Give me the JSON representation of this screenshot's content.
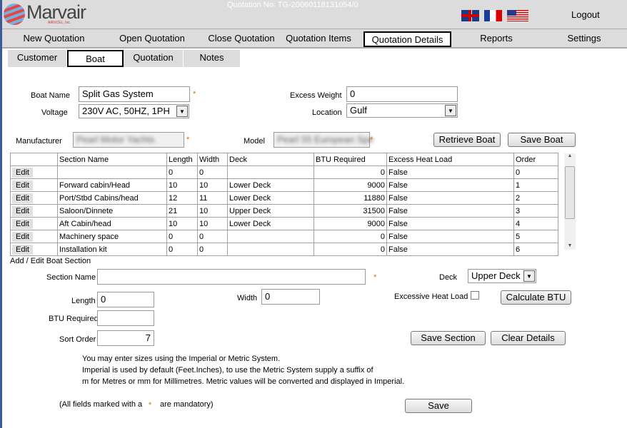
{
  "header": {
    "brand": "Marvair",
    "brand_sub": "AIRXCEL, Inc.",
    "quotation_no": "Quotation No: TG-20060118131054/0",
    "logout": "Logout",
    "flags": [
      "uk-flag",
      "france-flag",
      "us-flag"
    ]
  },
  "nav": [
    "New Quotation",
    "Open Quotation",
    "Close Quotation",
    "Quotation Items",
    "Quotation Details",
    "Reports",
    "Settings"
  ],
  "subtabs": [
    "Customer",
    "Boat",
    "Quotation",
    "Notes"
  ],
  "boat": {
    "name_label": "Boat Name",
    "name": "Split Gas System",
    "voltage_label": "Voltage",
    "voltage": "230V AC, 50HZ, 1PH",
    "excess_label": "Excess Weight",
    "excess": "0",
    "location_label": "Location",
    "location": "Gulf",
    "manufacturer_label": "Manufacturer",
    "manufacturer": "Pearl Motor Yachts",
    "model_label": "Model",
    "model": "Pearl 55 European Spe",
    "retrieve": "Retrieve Boat",
    "save": "Save Boat"
  },
  "table": {
    "headers": [
      "",
      "Section Name",
      "Length",
      "Width",
      "Deck",
      "BTU Required",
      "Excess Heat Load",
      "Order"
    ],
    "edit": "Edit",
    "rows": [
      [
        "",
        "0",
        "0",
        "",
        "0",
        "False",
        "0"
      ],
      [
        "Forward cabin/Head",
        "10",
        "10",
        "Lower Deck",
        "9000",
        "False",
        "1"
      ],
      [
        "Port/Stbd Cabins/head",
        "12",
        "11",
        "Lower Deck",
        "11880",
        "False",
        "2"
      ],
      [
        "Saloon/Dinnete",
        "21",
        "10",
        "Upper Deck",
        "31500",
        "False",
        "3"
      ],
      [
        "Aft Cabin/head",
        "10",
        "10",
        "Lower Deck",
        "9000",
        "False",
        "4"
      ],
      [
        "Machinery space",
        "0",
        "0",
        "",
        "0",
        "False",
        "5"
      ],
      [
        "Installation kit",
        "0",
        "0",
        "",
        "0",
        "False",
        "6"
      ]
    ]
  },
  "section": {
    "title": "Add / Edit Boat Section",
    "name_label": "Section Name",
    "name": "",
    "deck_label": "Deck",
    "deck": "Upper Deck",
    "length_label": "Length",
    "length": "0",
    "width_label": "Width",
    "width": "0",
    "excess_label": "Excessive Heat Load",
    "calc": "Calculate BTU",
    "btu_label": "BTU Required",
    "btu": "",
    "sort_label": "Sort Order",
    "sort": "7",
    "save_section": "Save Section",
    "clear": "Clear Details"
  },
  "notes": [
    "You may enter sizes using the Imperial or Metric System.",
    "Imperial is used by default (Feet.Inches), to use the Metric System supply a suffix of",
    "m for Metres or mm for Millimetres. Metric values will be converted and displayed in Imperial."
  ],
  "mandatory": {
    "pre": "(All fields marked with a",
    "star": "*",
    "post": "are mandatory)"
  },
  "save": "Save"
}
